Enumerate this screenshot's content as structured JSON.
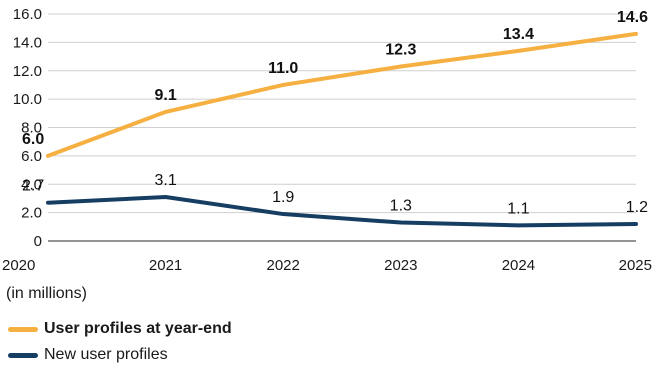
{
  "chart_data": {
    "type": "line",
    "categories": [
      "2020",
      "2021",
      "2022",
      "2023",
      "2024",
      "2025"
    ],
    "y_ticks": [
      "0",
      "2.0",
      "4.0",
      "6.0",
      "8.0",
      "10.0",
      "12.0",
      "14.0",
      "16.0"
    ],
    "ylim": [
      0,
      16
    ],
    "grid": true,
    "unit_note": "(in millions)",
    "series": [
      {
        "name": "User profiles at year-end",
        "color": "#F5B041",
        "values": [
          6.0,
          9.1,
          11.0,
          12.3,
          13.4,
          14.6
        ],
        "labels": [
          "6.0",
          "9.1",
          "11.0",
          "12.3",
          "13.4",
          "14.6"
        ],
        "bold": true
      },
      {
        "name": "New user profiles",
        "color": "#163E63",
        "values": [
          2.7,
          3.1,
          1.9,
          1.3,
          1.1,
          1.2
        ],
        "labels": [
          "2.7",
          "3.1",
          "1.9",
          "1.3",
          "1.1",
          "1.2"
        ],
        "bold": false
      }
    ],
    "legend_position": "bottom-left"
  }
}
